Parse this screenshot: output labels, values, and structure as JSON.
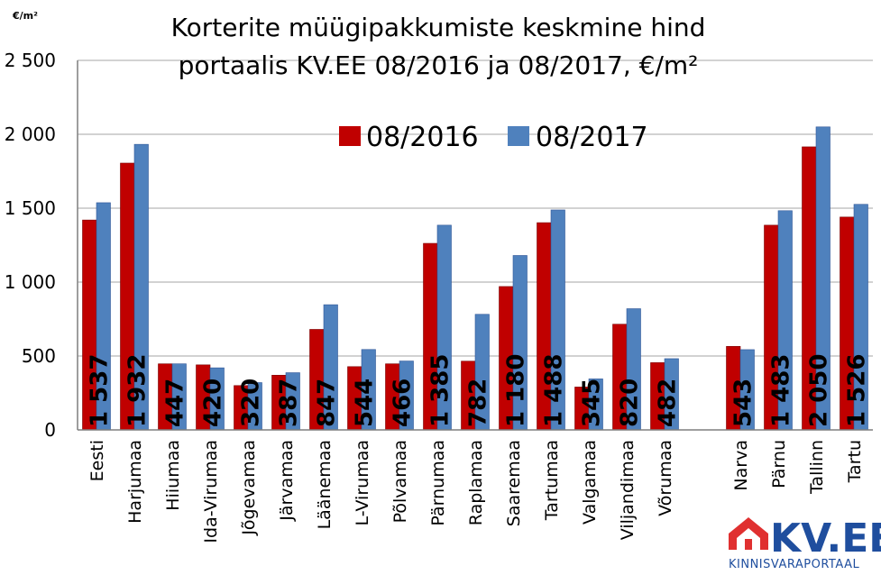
{
  "chart_data": {
    "type": "bar",
    "title_lines": [
      "Korterite müügipakkumiste keskmine hind",
      "portaalis KV.EE 08/2016 ja 08/2017, €/m²"
    ],
    "unit_label": "€/m²",
    "ylim": [
      0,
      2500
    ],
    "yticks": [
      0,
      500,
      1000,
      1500,
      2000,
      2500
    ],
    "ytick_labels": [
      "0",
      "500",
      "1 000",
      "1 500",
      "2 000",
      "2 500"
    ],
    "grid": true,
    "legend_position": "top-center",
    "categories": [
      "Eesti",
      "Harjumaa",
      "Hiiumaa",
      "Ida-Virumaa",
      "Jõgevamaa",
      "Järvamaa",
      "Läänemaa",
      "L-Virumaa",
      "Põlvamaa",
      "Pärnumaa",
      "Raplamaa",
      "Saaremaa",
      "Tartumaa",
      "Valgamaa",
      "Viljandimaa",
      "Võrumaa",
      "",
      "Narva",
      "Pärnu",
      "Tallinn",
      "Tartu"
    ],
    "series": [
      {
        "name": "08/2016",
        "color": "#c00000",
        "values": [
          1420,
          1805,
          447,
          440,
          300,
          370,
          680,
          428,
          447,
          1262,
          465,
          970,
          1402,
          290,
          715,
          455,
          null,
          565,
          1385,
          1915,
          1440
        ]
      },
      {
        "name": "08/2017",
        "color": "#4f81bd",
        "values": [
          1537,
          1932,
          447,
          420,
          320,
          387,
          847,
          544,
          466,
          1385,
          782,
          1180,
          1488,
          345,
          820,
          482,
          null,
          543,
          1483,
          2050,
          1526
        ],
        "data_labels": [
          "1 537",
          "1 932",
          "447",
          "420",
          "320",
          "387",
          "847",
          "544",
          "466",
          "1 385",
          "782",
          "1 180",
          "1 488",
          "345",
          "820",
          "482",
          "",
          "543",
          "1 483",
          "2 050",
          "1 526"
        ]
      }
    ]
  },
  "logo": {
    "text": "KV.EE",
    "subtitle": "KINNISVARAPORTAAL",
    "accent_color": "#e03030",
    "brand_color": "#1f4e9e"
  }
}
